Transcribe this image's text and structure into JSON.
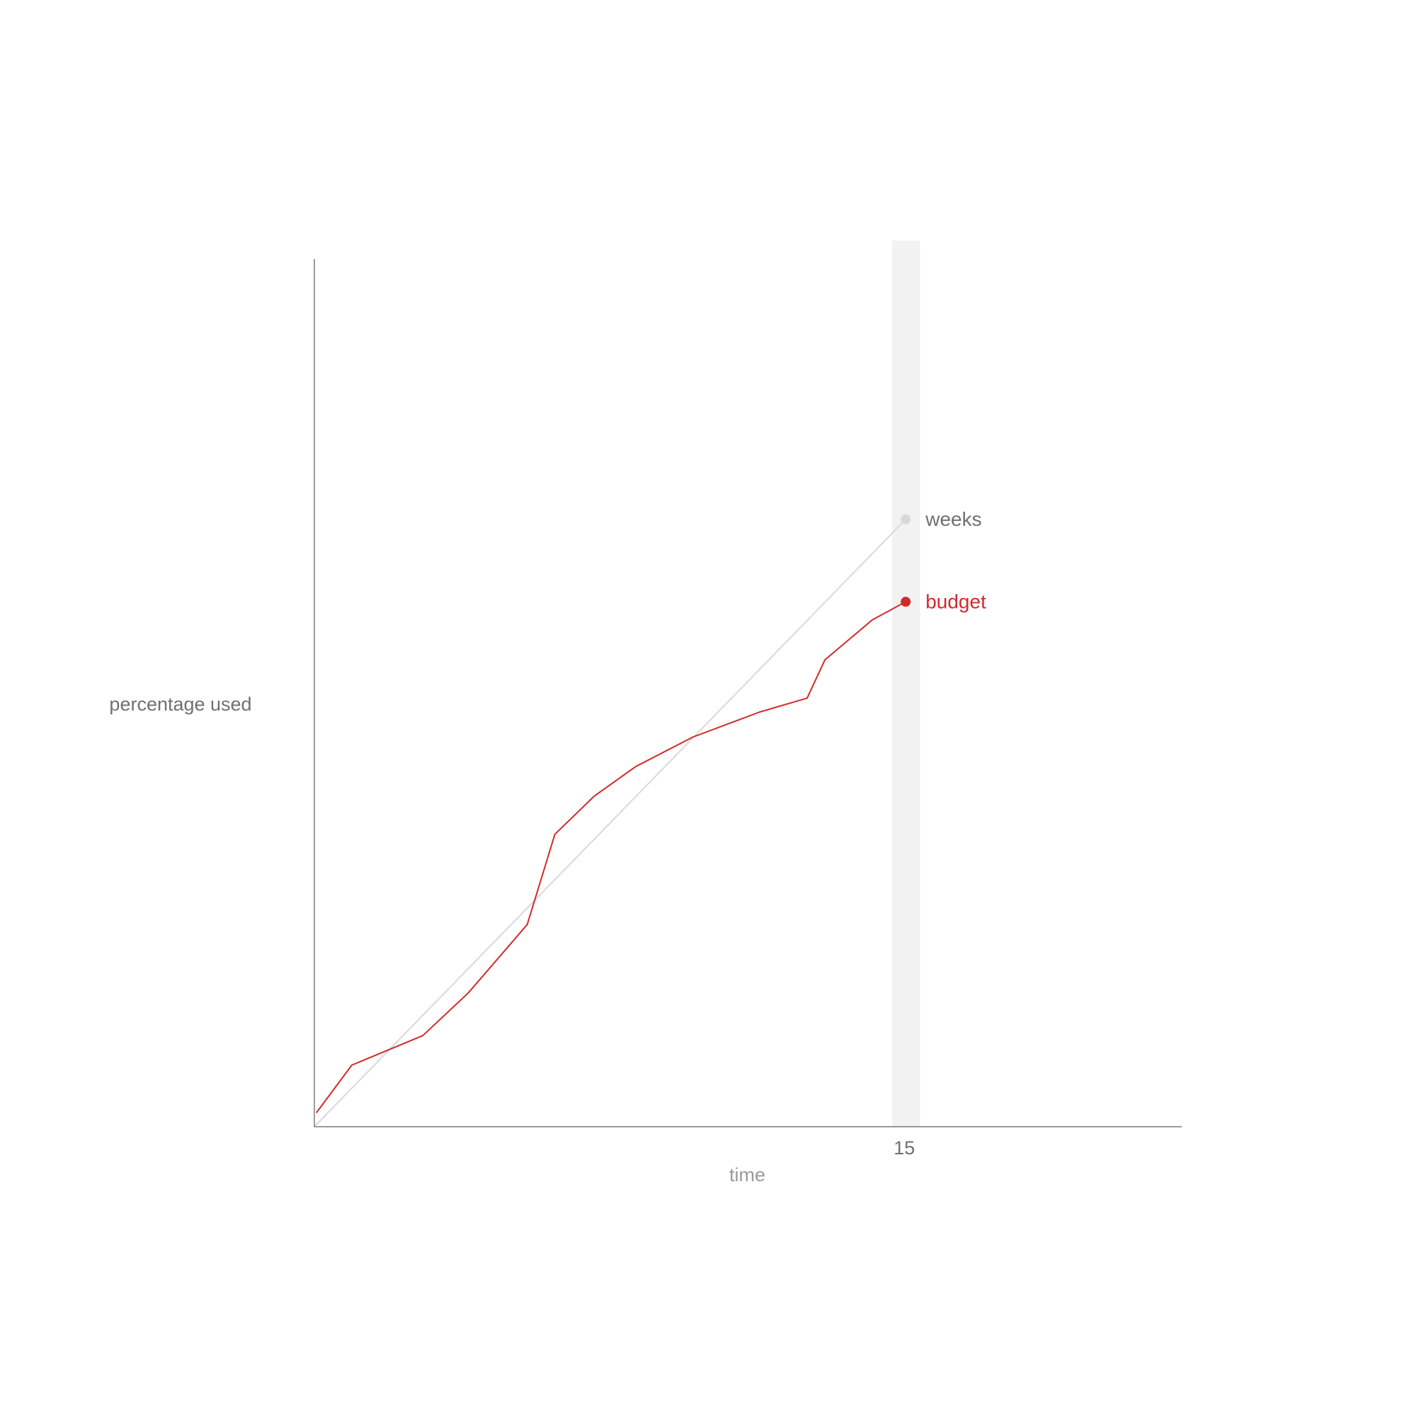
{
  "chart_data": {
    "type": "line",
    "title": "",
    "xlabel": "time",
    "ylabel": "percentage used",
    "xlim": [
      0,
      22
    ],
    "ylim": [
      0,
      100
    ],
    "x_ticks": [
      15
    ],
    "highlight_x": 15,
    "grid": false,
    "legend": "inline-right-end",
    "series": [
      {
        "name": "weeks",
        "color": "#d9d9d9",
        "points": [
          [
            0,
            0
          ],
          [
            15,
            70
          ]
        ]
      },
      {
        "name": "budget",
        "color": "#d22a2a",
        "points": [
          [
            0.05,
            1.6
          ],
          [
            0.95,
            7.1
          ],
          [
            2.75,
            10.5
          ],
          [
            3.9,
            15.4
          ],
          [
            5.4,
            23.3
          ],
          [
            6.1,
            33.7
          ],
          [
            7.1,
            38.1
          ],
          [
            8.15,
            41.5
          ],
          [
            9.6,
            44.9
          ],
          [
            11.3,
            47.8
          ],
          [
            12.5,
            49.4
          ],
          [
            12.95,
            53.8
          ],
          [
            14.15,
            58.4
          ],
          [
            15,
            60.5
          ]
        ]
      }
    ]
  }
}
